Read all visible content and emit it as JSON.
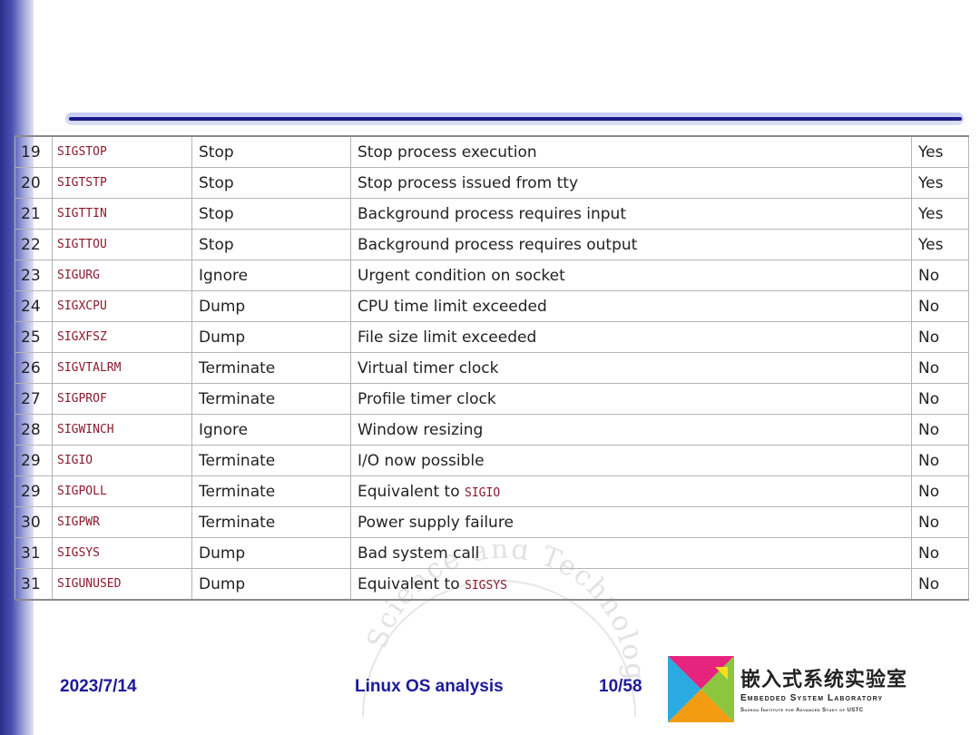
{
  "signals": [
    {
      "num": "19",
      "name": "SIGSTOP",
      "action": "Stop",
      "desc": "Stop process execution",
      "desc_code": "",
      "flag": "Yes"
    },
    {
      "num": "20",
      "name": "SIGTSTP",
      "action": "Stop",
      "desc": "Stop process issued from tty",
      "desc_code": "",
      "flag": "Yes"
    },
    {
      "num": "21",
      "name": "SIGTTIN",
      "action": "Stop",
      "desc": "Background process requires input",
      "desc_code": "",
      "flag": "Yes"
    },
    {
      "num": "22",
      "name": "SIGTTOU",
      "action": "Stop",
      "desc": "Background process requires output",
      "desc_code": "",
      "flag": "Yes"
    },
    {
      "num": "23",
      "name": "SIGURG",
      "action": "Ignore",
      "desc": "Urgent condition on socket",
      "desc_code": "",
      "flag": "No"
    },
    {
      "num": "24",
      "name": "SIGXCPU",
      "action": "Dump",
      "desc": "CPU time limit exceeded",
      "desc_code": "",
      "flag": "No"
    },
    {
      "num": "25",
      "name": "SIGXFSZ",
      "action": "Dump",
      "desc": "File size limit exceeded",
      "desc_code": "",
      "flag": "No"
    },
    {
      "num": "26",
      "name": "SIGVTALRM",
      "action": "Terminate",
      "desc": "Virtual timer clock",
      "desc_code": "",
      "flag": "No"
    },
    {
      "num": "27",
      "name": "SIGPROF",
      "action": "Terminate",
      "desc": "Profile timer clock",
      "desc_code": "",
      "flag": "No"
    },
    {
      "num": "28",
      "name": "SIGWINCH",
      "action": "Ignore",
      "desc": "Window resizing",
      "desc_code": "",
      "flag": "No"
    },
    {
      "num": "29",
      "name": "SIGIO",
      "action": "Terminate",
      "desc": "I/O now possible",
      "desc_code": "",
      "flag": "No"
    },
    {
      "num": "29",
      "name": "SIGPOLL",
      "action": "Terminate",
      "desc": "Equivalent to ",
      "desc_code": "SIGIO",
      "flag": "No"
    },
    {
      "num": "30",
      "name": "SIGPWR",
      "action": "Terminate",
      "desc": "Power supply failure",
      "desc_code": "",
      "flag": "No"
    },
    {
      "num": "31",
      "name": "SIGSYS",
      "action": "Dump",
      "desc": "Bad system call",
      "desc_code": "",
      "flag": "No"
    },
    {
      "num": "31",
      "name": "SIGUNUSED",
      "action": "Dump",
      "desc": "Equivalent to ",
      "desc_code": "SIGSYS",
      "flag": "No"
    }
  ],
  "watermark": {
    "text": "Science and Technology"
  },
  "footer": {
    "date": "2023/7/14",
    "title": "Linux OS analysis",
    "page": "10/58"
  },
  "logo": {
    "cn": "嵌入式系统实验室",
    "en": "Embedded System Laboratory",
    "sub": "Suzhou Institute for Advanced Study of USTC"
  },
  "colors": {
    "accent_blue": "#1c1a9a",
    "signal_name": "#8b1a2d",
    "logo_pink": "#e6237e",
    "logo_green": "#8cc63f",
    "logo_orange": "#f39c12",
    "logo_blue": "#29abe2"
  }
}
